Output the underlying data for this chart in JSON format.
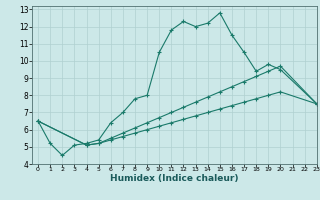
{
  "title": "",
  "xlabel": "Humidex (Indice chaleur)",
  "background_color": "#cce8e8",
  "grid_color": "#b0d0d0",
  "line_color": "#1a7a6a",
  "xlim": [
    -0.5,
    23
  ],
  "ylim": [
    4,
    13.2
  ],
  "yticks": [
    4,
    5,
    6,
    7,
    8,
    9,
    10,
    11,
    12,
    13
  ],
  "xticks": [
    0,
    1,
    2,
    3,
    4,
    5,
    6,
    7,
    8,
    9,
    10,
    11,
    12,
    13,
    14,
    15,
    16,
    17,
    18,
    19,
    20,
    21,
    22,
    23
  ],
  "line1_x": [
    0,
    1,
    2,
    3,
    4,
    5,
    6,
    7,
    8,
    9,
    10,
    11,
    12,
    13,
    14,
    15,
    16,
    17,
    18,
    19,
    20,
    23
  ],
  "line1_y": [
    6.5,
    5.2,
    4.5,
    5.1,
    5.2,
    5.4,
    6.4,
    7.0,
    7.8,
    8.0,
    10.5,
    11.8,
    12.3,
    12.0,
    12.2,
    12.8,
    11.5,
    10.5,
    9.4,
    9.8,
    9.5,
    7.5
  ],
  "line2_x": [
    0,
    4,
    5,
    6,
    7,
    8,
    9,
    10,
    11,
    12,
    13,
    14,
    15,
    16,
    17,
    18,
    19,
    20,
    23
  ],
  "line2_y": [
    6.5,
    5.1,
    5.2,
    5.4,
    5.6,
    5.8,
    6.0,
    6.2,
    6.4,
    6.6,
    6.8,
    7.0,
    7.2,
    7.4,
    7.6,
    7.8,
    8.0,
    8.2,
    7.5
  ],
  "line3_x": [
    0,
    4,
    5,
    6,
    7,
    8,
    9,
    10,
    11,
    12,
    13,
    14,
    15,
    16,
    17,
    18,
    19,
    20,
    23
  ],
  "line3_y": [
    6.5,
    5.1,
    5.2,
    5.5,
    5.8,
    6.1,
    6.4,
    6.7,
    7.0,
    7.3,
    7.6,
    7.9,
    8.2,
    8.5,
    8.8,
    9.1,
    9.4,
    9.7,
    7.5
  ]
}
